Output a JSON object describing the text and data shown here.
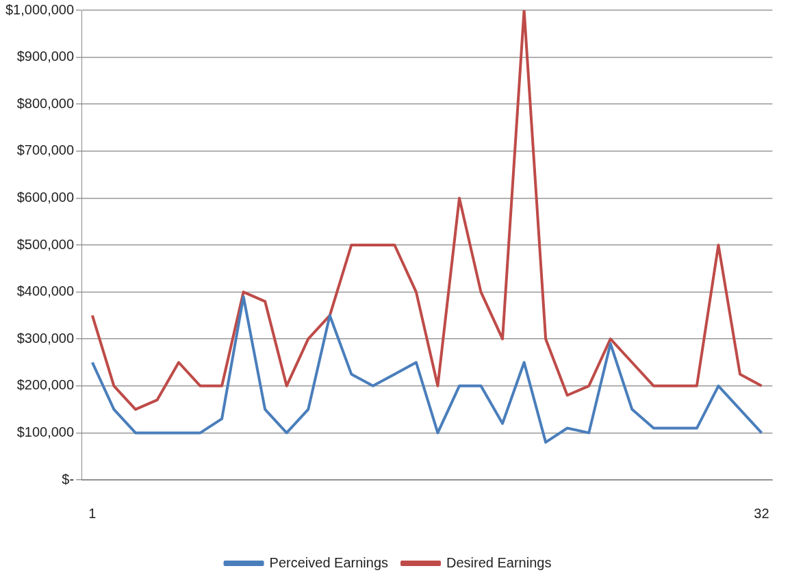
{
  "chart_data": {
    "type": "line",
    "categories": [
      "1",
      null,
      null,
      null,
      null,
      null,
      null,
      null,
      null,
      null,
      null,
      null,
      null,
      null,
      null,
      null,
      null,
      null,
      null,
      null,
      null,
      null,
      null,
      null,
      null,
      null,
      null,
      null,
      null,
      null,
      null,
      "32"
    ],
    "series": [
      {
        "name": "Perceived Earnings",
        "color": "#4a7ebb",
        "values": [
          250000,
          150000,
          100000,
          100000,
          100000,
          100000,
          130000,
          390000,
          150000,
          100000,
          150000,
          350000,
          225000,
          200000,
          225000,
          250000,
          100000,
          200000,
          200000,
          120000,
          250000,
          80000,
          110000,
          100000,
          290000,
          150000,
          110000,
          110000,
          110000,
          200000,
          150000,
          100000
        ]
      },
      {
        "name": "Desired Earnings",
        "color": "#be4b48",
        "values": [
          350000,
          200000,
          150000,
          170000,
          250000,
          200000,
          200000,
          400000,
          380000,
          200000,
          300000,
          350000,
          500000,
          500000,
          500000,
          400000,
          200000,
          600000,
          400000,
          300000,
          1000000,
          300000,
          180000,
          200000,
          300000,
          250000,
          200000,
          200000,
          200000,
          500000,
          225000,
          200000
        ]
      }
    ],
    "ylim": [
      0,
      1000000
    ],
    "yticks": [
      {
        "value": 0,
        "label": "$-"
      },
      {
        "value": 100000,
        "label": "$100,000"
      },
      {
        "value": 200000,
        "label": "$200,000"
      },
      {
        "value": 300000,
        "label": "$300,000"
      },
      {
        "value": 400000,
        "label": "$400,000"
      },
      {
        "value": 500000,
        "label": "$500,000"
      },
      {
        "value": 600000,
        "label": "$600,000"
      },
      {
        "value": 700000,
        "label": "$700,000"
      },
      {
        "value": 800000,
        "label": "$800,000"
      },
      {
        "value": 900000,
        "label": "$900,000"
      },
      {
        "value": 1000000,
        "label": "$1,000,000"
      }
    ],
    "grid": "y",
    "legend": "bottom",
    "marker": "none",
    "line_style": "solid"
  }
}
